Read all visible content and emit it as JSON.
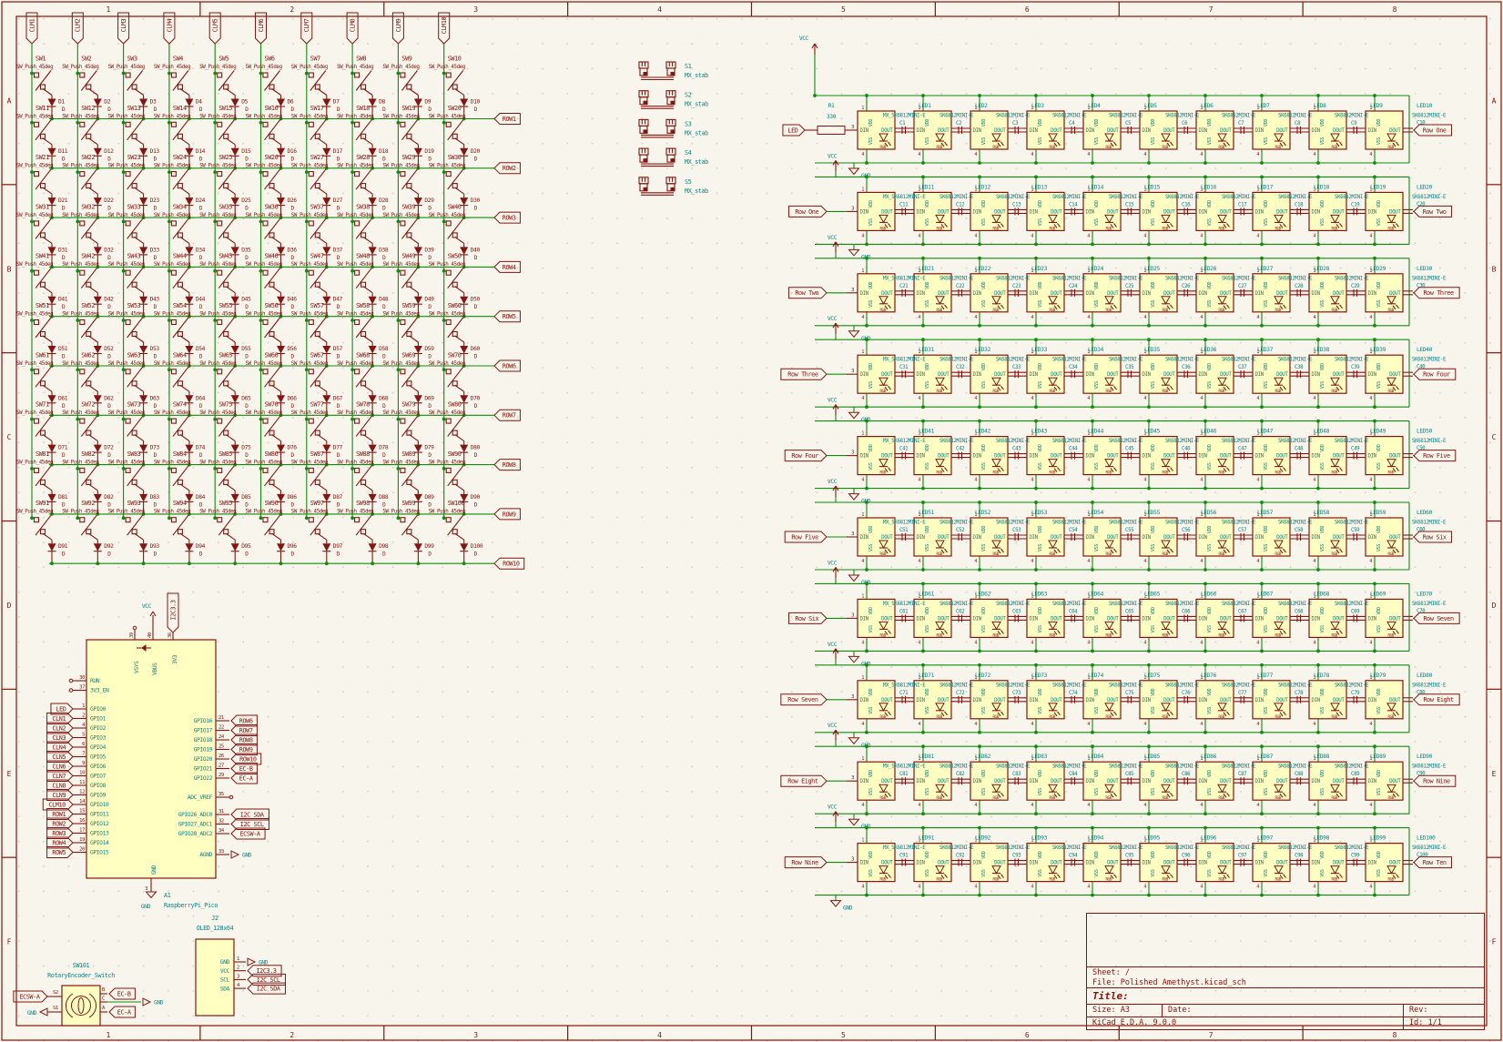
{
  "colors": {
    "background": "#F7F5EC",
    "wire_green": "#0E8C0E",
    "symbol_maroon": "#871410",
    "text_teal": "#0E8585",
    "component_fill": "#FFFFC2",
    "frame_maroon": "#8A1209"
  },
  "frame": {
    "column_labels": [
      "1",
      "2",
      "3",
      "4",
      "5",
      "6",
      "7",
      "8"
    ],
    "row_labels": [
      "A",
      "B",
      "C",
      "D",
      "E",
      "F"
    ]
  },
  "title_block": {
    "sheet": "Sheet: /",
    "file": "File: Polished Amethyst.kicad_sch",
    "title": "Title:",
    "size": "Size: A3",
    "date": "Date:",
    "rev": "Rev:",
    "generator": "KiCad E.D.A. 9.0.0",
    "id": "Id: 1/1"
  },
  "switch_matrix": {
    "rows": 10,
    "cols": 10,
    "column_labels": [
      "CLM1",
      "CLM2",
      "CLM3",
      "CLM4",
      "CLM5",
      "CLM6",
      "CLM7",
      "CLM8",
      "CLM9",
      "CLM10"
    ],
    "row_labels": [
      "ROW1",
      "ROW2",
      "ROW3",
      "ROW4",
      "ROW5",
      "ROW6",
      "ROW7",
      "ROW8",
      "ROW9",
      "ROW10"
    ],
    "switch_ref_prefix": "SW",
    "switch_value": "SW_Push_45deg",
    "diode_ref_prefix": "D",
    "diode_value": "D"
  },
  "stabilizers": {
    "refs": [
      "S1",
      "S2",
      "S3",
      "S4",
      "S5"
    ],
    "value": "MX_stab"
  },
  "pico": {
    "ref": "A1",
    "value": "RaspberryPi_Pico",
    "vcc_net": "VCC",
    "gnd_net": "GND",
    "top_pins": [
      {
        "num": "39",
        "name": "VSYS"
      },
      {
        "num": "40",
        "name": "VBUS",
        "net": "VCC"
      },
      {
        "num": "36",
        "name": "3V3",
        "net": "I2C3.3"
      }
    ],
    "left_pins": [
      {
        "num": "30",
        "name": "RUN"
      },
      {
        "num": "37",
        "name": "3V3_EN"
      },
      {
        "num": "1",
        "name": "GPIO0",
        "label": "LED"
      },
      {
        "num": "2",
        "name": "GPIO1",
        "label": "CLN1"
      },
      {
        "num": "4",
        "name": "GPIO2",
        "label": "CLN2"
      },
      {
        "num": "5",
        "name": "GPIO3",
        "label": "CLN3"
      },
      {
        "num": "6",
        "name": "GPIO4",
        "label": "CLN4"
      },
      {
        "num": "7",
        "name": "GPIO5",
        "label": "CLN5"
      },
      {
        "num": "9",
        "name": "GPIO6",
        "label": "CLN6"
      },
      {
        "num": "10",
        "name": "GPIO7",
        "label": "CLN7"
      },
      {
        "num": "11",
        "name": "GPIO8",
        "label": "CLN8"
      },
      {
        "num": "12",
        "name": "GPIO9",
        "label": "CLN9"
      },
      {
        "num": "14",
        "name": "GPIO10",
        "label": "CLM10"
      },
      {
        "num": "15",
        "name": "GPIO11",
        "label": "ROW1"
      },
      {
        "num": "16",
        "name": "GPIO12",
        "label": "ROW2"
      },
      {
        "num": "17",
        "name": "GPIO13",
        "label": "ROW3"
      },
      {
        "num": "19",
        "name": "GPIO14",
        "label": "ROW4"
      },
      {
        "num": "20",
        "name": "GPIO15",
        "label": "ROW5"
      }
    ],
    "right_pins": [
      {
        "num": "21",
        "name": "GPIO16",
        "label": "ROW6"
      },
      {
        "num": "22",
        "name": "GPIO17",
        "label": "ROW7"
      },
      {
        "num": "24",
        "name": "GPIO18",
        "label": "ROW8"
      },
      {
        "num": "25",
        "name": "GPIO19",
        "label": "ROW9"
      },
      {
        "num": "26",
        "name": "GPIO20",
        "label": "ROW10"
      },
      {
        "num": "27",
        "name": "GPIO21",
        "label": "EC-B"
      },
      {
        "num": "29",
        "name": "GPIO22",
        "label": "EC-A"
      },
      {
        "num": "35",
        "name": "ADC_VREF"
      },
      {
        "num": "31",
        "name": "GPIO26_ADC0",
        "label": "I2C SDA"
      },
      {
        "num": "32",
        "name": "GPIO27_ADC1",
        "label": "I2C SCL"
      },
      {
        "num": "34",
        "name": "GPIO28_ADC2",
        "label": "ECSW-A"
      },
      {
        "num": "33",
        "name": "AGND",
        "label": "GND",
        "arrow": true
      }
    ],
    "bottom_pin": {
      "num": "3",
      "name": "GND",
      "net": "GND"
    }
  },
  "oled": {
    "ref": "J2",
    "value": "OLED_128x64",
    "pins": [
      {
        "num": "1",
        "name": "GND",
        "label": "GND",
        "arrow": true
      },
      {
        "num": "2",
        "name": "VCC",
        "label": "I2C3.3"
      },
      {
        "num": "3",
        "name": "SCL",
        "label": "I2C SCL"
      },
      {
        "num": "4",
        "name": "SDA",
        "label": "I2C SDA"
      }
    ]
  },
  "encoder": {
    "ref": "SW101",
    "value": "RotaryEncoder_Switch",
    "left_pins": [
      {
        "name": "S2",
        "label": "ECSW-A"
      },
      {
        "name": "S1",
        "label": "GND",
        "power": true
      }
    ],
    "right_pins": [
      {
        "name": "B",
        "label": "EC-B"
      },
      {
        "name": "C",
        "label": "GND",
        "power": true
      },
      {
        "name": "A",
        "label": "EC-A"
      }
    ]
  },
  "led_matrix": {
    "vcc_net": "VCC",
    "gnd_net": "GND",
    "resistor": {
      "ref": "R1",
      "value": "330"
    },
    "led_ref_prefix": "LED",
    "cap_ref_prefix": "C",
    "chip_value": "SK6812MINI-E",
    "chip_value_first": "MX_SK6812MINI-E",
    "chip_pins": {
      "din": "DIN",
      "dout": "DOUT",
      "vdd": "VDD",
      "vss": "VSS",
      "led": "RGB",
      "num_top": "1",
      "num_bottom": "4",
      "num_din": "3"
    },
    "rows": [
      {
        "input": "LED",
        "output": "Row One",
        "end_ref": "LED10",
        "end_cap": "C10"
      },
      {
        "input": "Row One",
        "output": "Row Two",
        "end_ref": "LED20",
        "end_cap": "C20"
      },
      {
        "input": "Row Two",
        "output": "Row Three",
        "end_ref": "LED30",
        "end_cap": "C30"
      },
      {
        "input": "Row Three",
        "output": "Row Four",
        "end_ref": "LED40",
        "end_cap": "C40"
      },
      {
        "input": "Row Four",
        "output": "Row Five",
        "end_ref": "LED50",
        "end_cap": "C50"
      },
      {
        "input": "Row Five",
        "output": "Row Six",
        "end_ref": "LED60",
        "end_cap": "C60"
      },
      {
        "input": "Row Six",
        "output": "Row Seven",
        "end_ref": "LED70",
        "end_cap": "C70"
      },
      {
        "input": "Row Seven",
        "output": "Row Eight",
        "end_ref": "LED80",
        "end_cap": "C80"
      },
      {
        "input": "Row Eight",
        "output": "Row Nine",
        "end_ref": "LED90",
        "end_cap": "C90"
      },
      {
        "input": "Row Nine",
        "output": "Row Ten",
        "end_ref": "LED100",
        "end_cap": "C100"
      }
    ]
  }
}
